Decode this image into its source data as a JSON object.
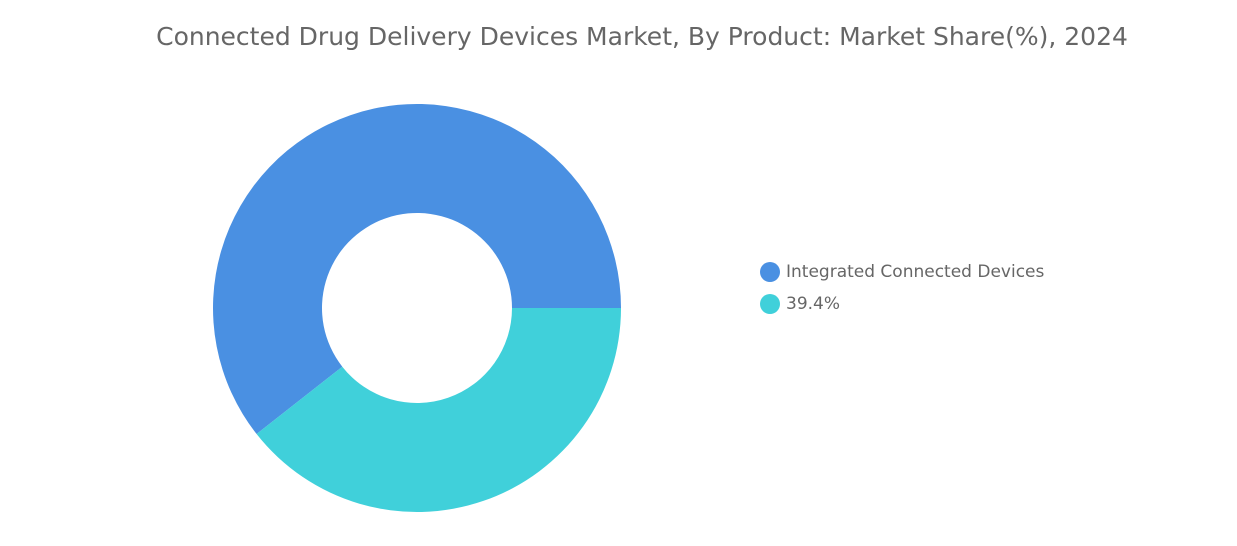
{
  "chart_data": {
    "type": "donut",
    "title": "Connected Drug Delivery Devices Market, By Product: Market Share(%), 2024",
    "categories": [
      "Integrated Connected Devices",
      "39.4%"
    ],
    "values": [
      60.6,
      39.4
    ],
    "colors": [
      "#4a90e2",
      "#40d0da"
    ]
  }
}
